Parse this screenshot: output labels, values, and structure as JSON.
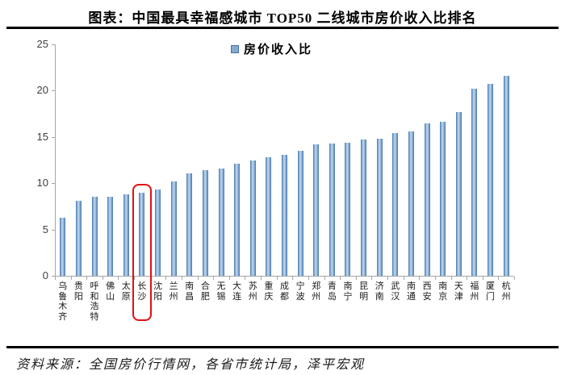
{
  "header": {
    "title": "图表：中国最具幸福感城市 TOP50 二线城市房价收入比排名"
  },
  "legend": {
    "label": "房价收入比",
    "swatch_color": "#86a9d2"
  },
  "chart_data": {
    "type": "bar",
    "title": "中国最具幸福感城市TOP50二线城市房价收入比排名",
    "series_name": "房价收入比",
    "categories": [
      "乌鲁木齐",
      "贵阳",
      "呼和浩特",
      "佛山",
      "太原",
      "长沙",
      "沈阳",
      "兰州",
      "南昌",
      "合肥",
      "无锡",
      "大连",
      "苏州",
      "重庆",
      "成都",
      "宁波",
      "郑州",
      "青岛",
      "南宁",
      "昆明",
      "济南",
      "武汉",
      "南通",
      "西安",
      "南京",
      "天津",
      "福州",
      "厦门",
      "杭州"
    ],
    "values": [
      6.3,
      8.1,
      8.5,
      8.5,
      8.8,
      9.0,
      9.3,
      10.2,
      11.1,
      11.4,
      11.6,
      12.1,
      12.5,
      12.8,
      13.1,
      13.5,
      14.2,
      14.3,
      14.4,
      14.7,
      14.8,
      15.4,
      15.6,
      16.5,
      16.6,
      17.7,
      20.2,
      20.7,
      21.6
    ],
    "xlabel": "",
    "ylabel": "",
    "ylim": [
      0,
      25
    ],
    "yticks": [
      0,
      5,
      10,
      15,
      20,
      25
    ],
    "grid": false,
    "legend_position": "top-center",
    "bar_color": "#6f9ccb",
    "highlight": {
      "category": "长沙",
      "index": 5,
      "box_color": "#e01010"
    }
  },
  "footer": {
    "source": "资料来源：全国房价行情网，各省市统计局，泽平宏观"
  }
}
